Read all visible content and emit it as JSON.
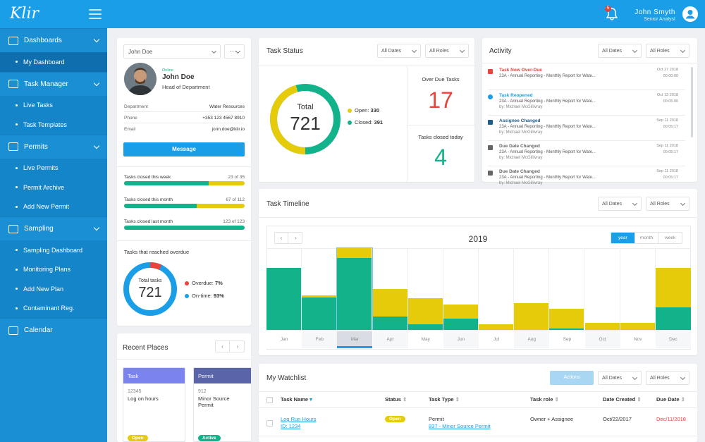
{
  "topbar": {
    "logo": "Klir",
    "notifications_count": "5",
    "user_name": "John Smyth",
    "user_role": "Senior Analyst"
  },
  "sidebar": {
    "sections": [
      {
        "label": "Dashboards",
        "items": [
          "My Dashboard"
        ]
      },
      {
        "label": "Task Manager",
        "items": [
          "Live Tasks",
          "Task Templates"
        ]
      },
      {
        "label": "Permits",
        "items": [
          "Live Permits",
          "Permit Archive",
          "Add New Permit"
        ]
      },
      {
        "label": "Sampling",
        "items": [
          "Sampling Dashboard",
          "Monitoring Plans",
          "Add New Plan",
          "Contaminant Reg."
        ]
      }
    ],
    "calendar": "Calendar"
  },
  "profile": {
    "select": "John Doe",
    "more": "···",
    "status": "Online",
    "name": "John Doe",
    "title": "Head of Department",
    "department_label": "Department",
    "department": "Water Resources",
    "phone_label": "Phone",
    "phone": "+353 123 4567 8910",
    "email_label": "Email",
    "email": "jonn.doe@klir.io",
    "message_button": "Message",
    "progress": [
      {
        "label": "Tasks closed this week",
        "value": "23 of 35",
        "fraction": 0.7
      },
      {
        "label": "Tasks closed this month",
        "value": "67 of 112",
        "fraction": 0.6
      },
      {
        "label": "Tasks closed last month",
        "value": "123 of 123",
        "fraction": 1.0
      }
    ],
    "overdue_title": "Tasks that reached overdue",
    "total_label": "Total tasks",
    "total": "721",
    "overdue_label": "Overdue:",
    "overdue_value": "7%",
    "ontime_label": "On-time:",
    "ontime_value": "93%"
  },
  "task_status": {
    "title": "Task Status",
    "filter_dates": "All Dates",
    "filter_roles": "All Roles",
    "total_label": "Total",
    "total": "721",
    "open_label": "Open:",
    "open": "330",
    "closed_label": "Closed:",
    "closed": "391",
    "overdue_label": "Over Due Tasks",
    "overdue": "17",
    "closed_today_label": "Tasks closed today",
    "closed_today": "4",
    "colors": {
      "open": "#e6cb0b",
      "closed": "#12b28a",
      "overdue": "#e8443c"
    }
  },
  "activity": {
    "title": "Activity",
    "filter_dates": "All Dates",
    "filter_roles": "All Roles",
    "items": [
      {
        "type": "Task Now Over-Due",
        "desc": "23A - Annual Reporting - Monthly Report for Wate...",
        "by": "",
        "date": "Oct 27 2018",
        "time": "00:00:00",
        "color": "#e8443c",
        "icon": "alert-icon"
      },
      {
        "type": "Task Reopened",
        "desc": "23A - Annual Reporting - Monthly Report for Wate...",
        "by": "by: Michael McGillivray",
        "date": "Oct 13 2018",
        "time": "00:05:00",
        "color": "#1a9ee8",
        "icon": "check-icon"
      },
      {
        "type": "Assignee Changed",
        "desc": "23A - Annual Reporting - Monthly Report for Wate...",
        "by": "by: Michael McGillivray",
        "date": "Sep 11 2018",
        "time": "00:05:17",
        "color": "#1e5f8a",
        "icon": "warning-icon"
      },
      {
        "type": "Due Date Changed",
        "desc": "23A - Annual Reporting - Monthly Report for Wate...",
        "by": "by: Michael McGillivray",
        "date": "Sep 11 2018",
        "time": "00:05:17",
        "color": "#666666",
        "icon": "warning-icon"
      },
      {
        "type": "Due Date Changed",
        "desc": "23A - Annual Reporting - Monthly Report for Wate...",
        "by": "by: Michael McGillivray",
        "date": "Sep 11 2018",
        "time": "00:05:17",
        "color": "#666666",
        "icon": "warning-icon"
      }
    ]
  },
  "timeline": {
    "title": "Task Timeline",
    "filter_dates": "All Dates",
    "filter_roles": "All Roles",
    "year": "2019",
    "views": [
      "year",
      "month",
      "week"
    ],
    "selected_month": "Mar"
  },
  "chart_data": {
    "type": "bar",
    "categories": [
      "Jan",
      "Feb",
      "Mar",
      "Apr",
      "May",
      "Jun",
      "Jul",
      "Aug",
      "Sep",
      "Oct",
      "Nov",
      "Dec"
    ],
    "series": [
      {
        "values": [
          0.76,
          0.4,
          0.88,
          0.16,
          0.07,
          0.14,
          0.0,
          0.0,
          0.02,
          0.0,
          0.0,
          0.28
        ]
      },
      {
        "values": [
          0.0,
          0.02,
          0.12,
          0.34,
          0.32,
          0.17,
          0.07,
          0.33,
          0.24,
          0.09,
          0.09,
          0.48
        ]
      }
    ],
    "colors": [
      "#12b28a",
      "#e6cb0b"
    ],
    "ylim": [
      0,
      1
    ]
  },
  "places": {
    "title": "Recent Places",
    "cards": [
      {
        "type": "Task",
        "id": "12345",
        "name": "Log on hours",
        "badge": "Open",
        "head_color": "#7b83ee",
        "badge_color": "#e6cb0b"
      },
      {
        "type": "Permit",
        "id": "912",
        "name": "Minor Source Permit",
        "badge": "Active",
        "head_color": "#5a64a8",
        "badge_color": "#12b28a"
      }
    ]
  },
  "watchlist": {
    "title": "My Watchlist",
    "actions": "Actions",
    "filter_dates": "All Dates",
    "filter_roles": "All Roles",
    "headers": [
      "Task Name",
      "Status",
      "Task Type",
      "Task role",
      "Date Created",
      "Due Date"
    ],
    "row": {
      "name": "Log Run Hours",
      "id": "ID: 1234",
      "status": "Open",
      "type": "Permit",
      "type_link": "837 - Minor Source Permit",
      "role": "Owner + Assignee",
      "created": "Oct/22/2017",
      "due": "Dec/11/2018"
    }
  }
}
